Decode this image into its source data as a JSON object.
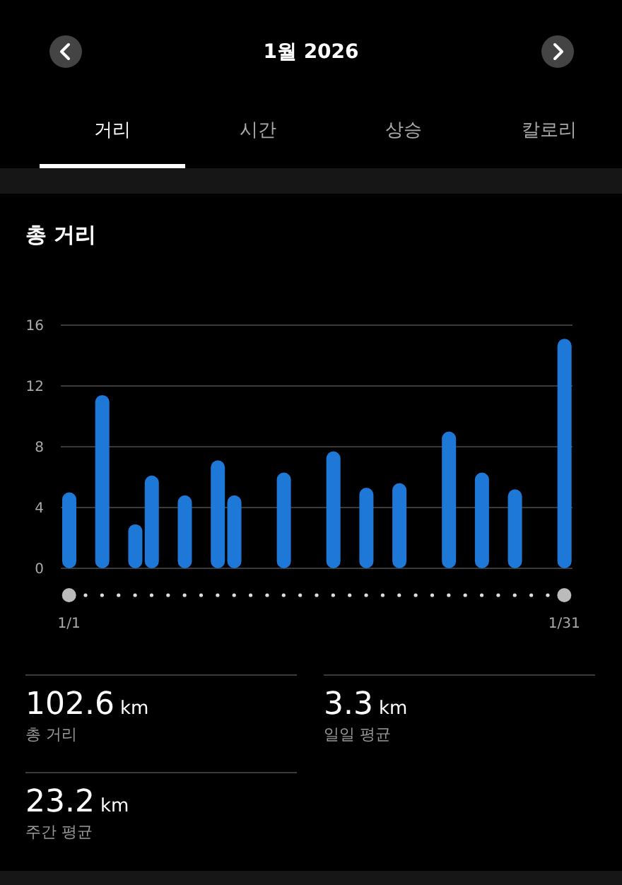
{
  "chart_data": {
    "type": "bar",
    "title": "총 거리",
    "subtitle": "1월 2026",
    "annotations": [
      "거리",
      "시간",
      "상승",
      "칼로리",
      "102.6 km",
      "총 거리",
      "3.3 km",
      "일일 평균",
      "23.2 km",
      "주간 평균"
    ],
    "categories": [
      "1/1",
      null,
      null,
      null,
      null,
      null,
      null,
      null,
      null,
      null,
      null,
      null,
      null,
      null,
      null,
      null,
      null,
      null,
      null,
      null,
      null,
      null,
      null,
      null,
      null,
      null,
      null,
      null,
      null,
      null,
      "1/31"
    ],
    "values": [
      5.0,
      null,
      11.4,
      null,
      2.9,
      6.1,
      null,
      4.8,
      null,
      7.1,
      4.8,
      null,
      null,
      6.3,
      null,
      null,
      7.7,
      null,
      5.3,
      null,
      5.6,
      null,
      null,
      9.0,
      null,
      6.3,
      null,
      5.2,
      null,
      null,
      15.1
    ],
    "color": "#1e78d7",
    "ylim": [
      0,
      16
    ],
    "yticks": [
      0,
      4,
      8,
      12,
      16
    ],
    "grid": "y"
  }
}
